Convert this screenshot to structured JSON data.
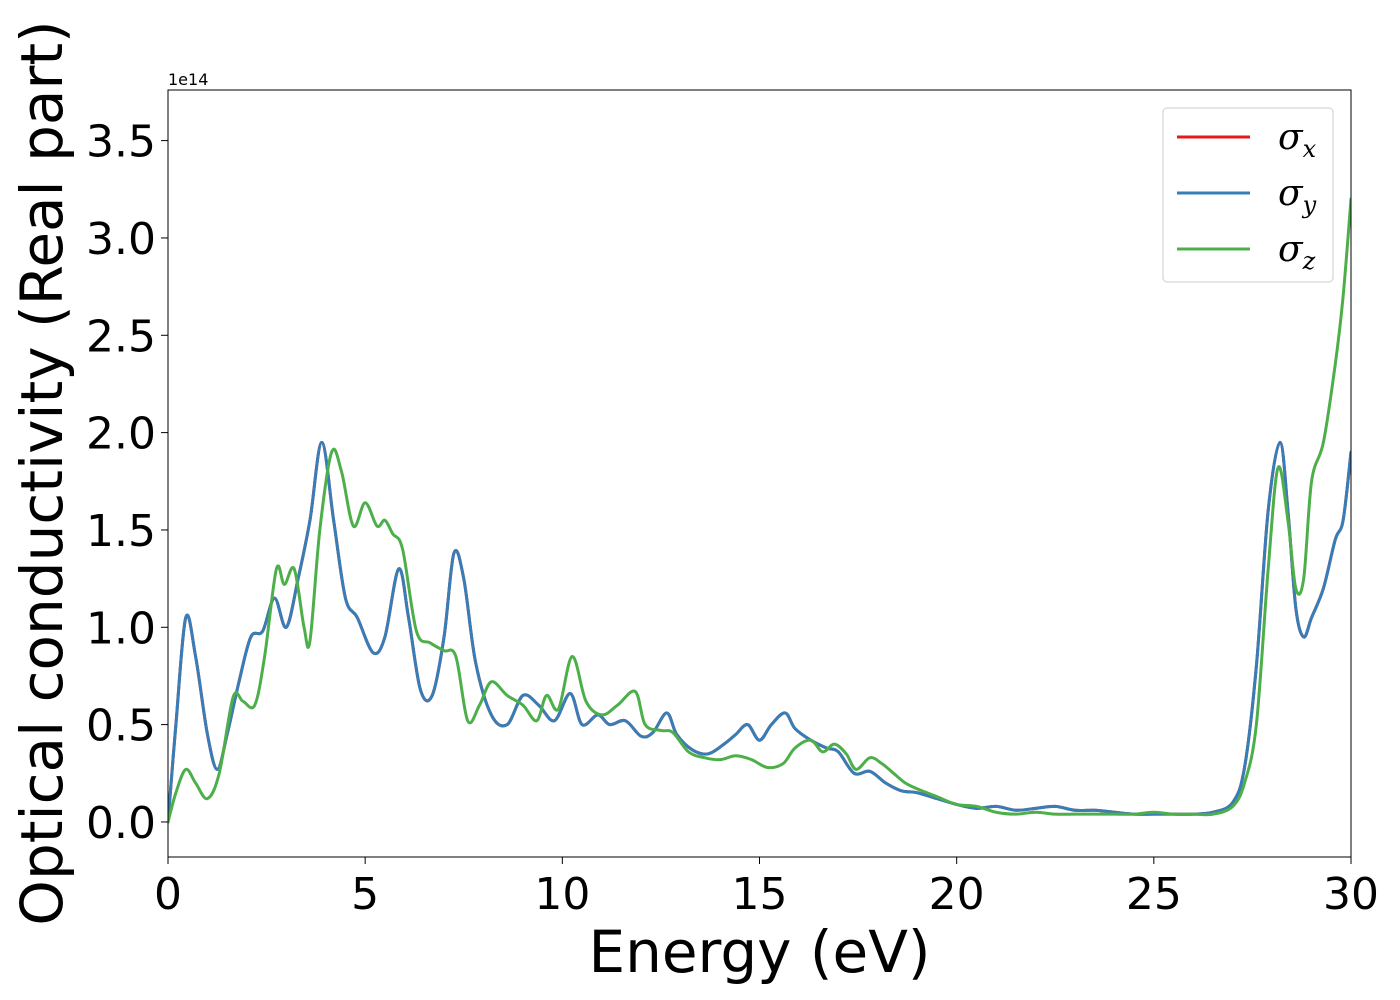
{
  "chart_data": {
    "type": "line",
    "xlabel": "Energy (eV)",
    "ylabel": "Optical conductivity (Real part)",
    "y_offset_label": "1e14",
    "xlim": [
      0,
      30
    ],
    "ylim": [
      -0.18,
      3.76
    ],
    "xticks": [
      0,
      5,
      10,
      15,
      20,
      25,
      30
    ],
    "xtick_labels": [
      "0",
      "5",
      "10",
      "15",
      "20",
      "25",
      "30"
    ],
    "yticks": [
      0.0,
      0.5,
      1.0,
      1.5,
      2.0,
      2.5,
      3.0,
      3.5
    ],
    "ytick_labels": [
      "0.0",
      "0.5",
      "1.0",
      "1.5",
      "2.0",
      "2.5",
      "3.0",
      "3.5"
    ],
    "grid": false,
    "legend_position": "top-right",
    "series": [
      {
        "name": "σx",
        "base": "σ",
        "sub": "x",
        "color": "#e41a1c",
        "x": [
          0,
          0.2,
          0.45,
          0.7,
          1.0,
          1.25,
          1.5,
          1.8,
          2.1,
          2.4,
          2.7,
          3.0,
          3.3,
          3.6,
          3.9,
          4.2,
          4.5,
          4.8,
          5.2,
          5.5,
          5.85,
          6.1,
          6.4,
          6.7,
          7.0,
          7.25,
          7.5,
          7.8,
          8.2,
          8.6,
          9.0,
          9.4,
          9.8,
          10.2,
          10.5,
          10.9,
          11.2,
          11.6,
          12.0,
          12.3,
          12.65,
          12.9,
          13.3,
          13.7,
          14.1,
          14.4,
          14.7,
          15.0,
          15.3,
          15.65,
          15.9,
          16.3,
          16.7,
          17.0,
          17.4,
          17.8,
          18.2,
          18.6,
          19.0,
          19.5,
          20.0,
          20.5,
          21.0,
          21.5,
          22.0,
          22.5,
          23.0,
          23.5,
          24.0,
          24.5,
          25.0,
          25.5,
          26.0,
          26.5,
          27.0,
          27.3,
          27.6,
          27.9,
          28.2,
          28.4,
          28.6,
          28.8,
          29.0,
          29.3,
          29.6,
          29.8,
          30.0
        ],
        "y": [
          0.0,
          0.5,
          1.05,
          0.85,
          0.45,
          0.27,
          0.45,
          0.72,
          0.95,
          0.98,
          1.15,
          1.0,
          1.25,
          1.55,
          1.95,
          1.55,
          1.15,
          1.05,
          0.87,
          0.95,
          1.3,
          1.05,
          0.68,
          0.65,
          0.95,
          1.38,
          1.25,
          0.82,
          0.55,
          0.5,
          0.65,
          0.6,
          0.52,
          0.66,
          0.5,
          0.55,
          0.5,
          0.52,
          0.44,
          0.46,
          0.56,
          0.45,
          0.37,
          0.35,
          0.4,
          0.45,
          0.5,
          0.42,
          0.5,
          0.56,
          0.48,
          0.42,
          0.38,
          0.36,
          0.25,
          0.26,
          0.2,
          0.16,
          0.15,
          0.12,
          0.09,
          0.07,
          0.08,
          0.06,
          0.07,
          0.08,
          0.06,
          0.06,
          0.05,
          0.04,
          0.04,
          0.04,
          0.04,
          0.05,
          0.1,
          0.28,
          0.8,
          1.6,
          1.95,
          1.6,
          1.1,
          0.95,
          1.05,
          1.2,
          1.45,
          1.55,
          1.9
        ]
      },
      {
        "name": "σy",
        "base": "σ",
        "sub": "y",
        "color": "#377eb8",
        "x": [
          0,
          0.2,
          0.45,
          0.7,
          1.0,
          1.25,
          1.5,
          1.8,
          2.1,
          2.4,
          2.7,
          3.0,
          3.3,
          3.6,
          3.9,
          4.2,
          4.5,
          4.8,
          5.2,
          5.5,
          5.85,
          6.1,
          6.4,
          6.7,
          7.0,
          7.25,
          7.5,
          7.8,
          8.2,
          8.6,
          9.0,
          9.4,
          9.8,
          10.2,
          10.5,
          10.9,
          11.2,
          11.6,
          12.0,
          12.3,
          12.65,
          12.9,
          13.3,
          13.7,
          14.1,
          14.4,
          14.7,
          15.0,
          15.3,
          15.65,
          15.9,
          16.3,
          16.7,
          17.0,
          17.4,
          17.8,
          18.2,
          18.6,
          19.0,
          19.5,
          20.0,
          20.5,
          21.0,
          21.5,
          22.0,
          22.5,
          23.0,
          23.5,
          24.0,
          24.5,
          25.0,
          25.5,
          26.0,
          26.5,
          27.0,
          27.3,
          27.6,
          27.9,
          28.2,
          28.4,
          28.6,
          28.8,
          29.0,
          29.3,
          29.6,
          29.8,
          30.0
        ],
        "y": [
          0.0,
          0.5,
          1.05,
          0.85,
          0.45,
          0.27,
          0.45,
          0.72,
          0.95,
          0.98,
          1.15,
          1.0,
          1.25,
          1.55,
          1.95,
          1.55,
          1.15,
          1.05,
          0.87,
          0.95,
          1.3,
          1.05,
          0.68,
          0.65,
          0.95,
          1.38,
          1.25,
          0.82,
          0.55,
          0.5,
          0.65,
          0.6,
          0.52,
          0.66,
          0.5,
          0.55,
          0.5,
          0.52,
          0.44,
          0.46,
          0.56,
          0.45,
          0.37,
          0.35,
          0.4,
          0.45,
          0.5,
          0.42,
          0.5,
          0.56,
          0.48,
          0.42,
          0.38,
          0.36,
          0.25,
          0.26,
          0.2,
          0.16,
          0.15,
          0.12,
          0.09,
          0.07,
          0.08,
          0.06,
          0.07,
          0.08,
          0.06,
          0.06,
          0.05,
          0.04,
          0.04,
          0.04,
          0.04,
          0.05,
          0.1,
          0.28,
          0.8,
          1.6,
          1.95,
          1.6,
          1.1,
          0.95,
          1.05,
          1.2,
          1.45,
          1.55,
          1.9
        ]
      },
      {
        "name": "σz",
        "base": "σ",
        "sub": "z",
        "color": "#4daf4a",
        "x": [
          0,
          0.2,
          0.45,
          0.7,
          1.0,
          1.3,
          1.65,
          1.9,
          2.2,
          2.45,
          2.75,
          2.95,
          3.2,
          3.45,
          3.6,
          3.85,
          4.15,
          4.4,
          4.7,
          5.0,
          5.3,
          5.5,
          5.7,
          5.95,
          6.3,
          6.65,
          7.0,
          7.3,
          7.6,
          7.9,
          8.2,
          8.6,
          9.0,
          9.35,
          9.6,
          9.9,
          10.25,
          10.6,
          11.0,
          11.4,
          11.85,
          12.1,
          12.5,
          12.8,
          13.2,
          13.6,
          14.0,
          14.4,
          14.8,
          15.2,
          15.6,
          15.9,
          16.3,
          16.6,
          16.9,
          17.2,
          17.45,
          17.8,
          18.1,
          18.4,
          18.7,
          19.0,
          19.5,
          20.0,
          20.5,
          21.0,
          21.5,
          22.0,
          22.5,
          23.0,
          23.5,
          24.0,
          24.5,
          25.0,
          25.5,
          26.0,
          26.5,
          27.0,
          27.3,
          27.6,
          27.9,
          28.15,
          28.4,
          28.6,
          28.8,
          29.0,
          29.3,
          29.6,
          29.8,
          30.0
        ],
        "y": [
          0.0,
          0.15,
          0.27,
          0.2,
          0.12,
          0.25,
          0.64,
          0.62,
          0.6,
          0.85,
          1.3,
          1.22,
          1.3,
          1.0,
          0.93,
          1.5,
          1.9,
          1.8,
          1.52,
          1.64,
          1.52,
          1.55,
          1.48,
          1.4,
          0.98,
          0.92,
          0.88,
          0.85,
          0.52,
          0.6,
          0.72,
          0.65,
          0.6,
          0.52,
          0.65,
          0.58,
          0.85,
          0.62,
          0.55,
          0.6,
          0.67,
          0.5,
          0.47,
          0.46,
          0.36,
          0.33,
          0.32,
          0.34,
          0.32,
          0.28,
          0.3,
          0.38,
          0.42,
          0.36,
          0.4,
          0.35,
          0.27,
          0.33,
          0.3,
          0.25,
          0.2,
          0.17,
          0.13,
          0.09,
          0.08,
          0.05,
          0.04,
          0.05,
          0.04,
          0.04,
          0.04,
          0.04,
          0.04,
          0.05,
          0.04,
          0.04,
          0.04,
          0.08,
          0.2,
          0.5,
          1.3,
          1.82,
          1.55,
          1.2,
          1.25,
          1.75,
          1.95,
          2.35,
          2.7,
          3.2
        ]
      }
    ]
  }
}
